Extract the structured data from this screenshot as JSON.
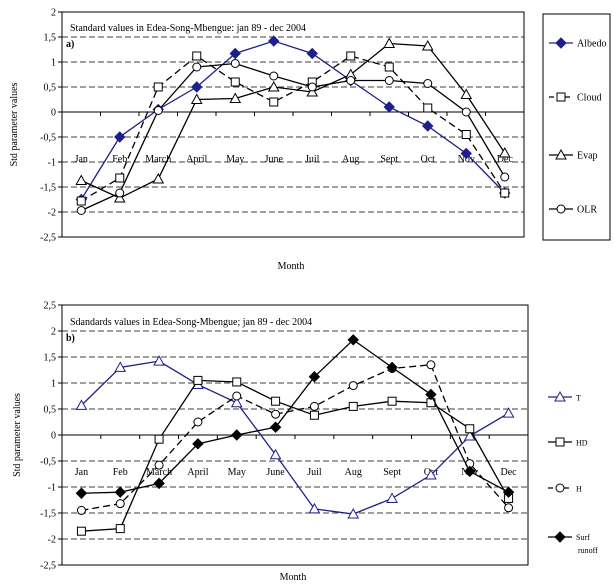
{
  "chart_data": [
    {
      "type": "line",
      "title": "Standard values in Edea-Song-Mbengue: jan 89 - dec 2004",
      "panel_label": "a)",
      "xlabel": "Month",
      "ylabel": "Std parameter values",
      "ylim": [
        -2.5,
        2
      ],
      "ytick_step": 0.5,
      "ytick_labels": [
        "-2,5",
        "-2",
        "-1,5",
        "-1",
        "-0,5",
        "0",
        "0,5",
        "1",
        "1,5",
        "2"
      ],
      "grid": "horizontal dashed",
      "legend_placement": "right",
      "categories": [
        "Jan",
        "Feb",
        "March",
        "April",
        "May",
        "June",
        "Juil",
        "Aug",
        "Sept",
        "Oct",
        "Nov",
        "Dec"
      ],
      "series": [
        {
          "name": "Albedo",
          "marker": "diamond",
          "dash": "solid",
          "color": "#1f1f8c",
          "values": [
            -1.75,
            -0.5,
            0.05,
            0.5,
            1.17,
            1.42,
            1.17,
            0.63,
            0.1,
            -0.28,
            -0.83,
            -1.62
          ]
        },
        {
          "name": "Cloud",
          "marker": "square",
          "dash": "dashed",
          "color": "#000000",
          "values": [
            -1.78,
            -1.32,
            0.5,
            1.12,
            0.6,
            0.2,
            0.6,
            1.12,
            0.9,
            0.08,
            -0.45,
            -1.62
          ]
        },
        {
          "name": "Evap",
          "marker": "triangle",
          "dash": "solid",
          "color": "#000000",
          "values": [
            -1.37,
            -1.72,
            -1.34,
            0.25,
            0.27,
            0.5,
            0.4,
            0.75,
            1.37,
            1.32,
            0.35,
            -0.82
          ]
        },
        {
          "name": "OLR",
          "marker": "circle",
          "dash": "solid",
          "color": "#000000",
          "values": [
            -1.97,
            -1.62,
            0.03,
            0.9,
            0.97,
            0.72,
            0.5,
            0.63,
            0.63,
            0.57,
            0.0,
            -1.3
          ]
        }
      ]
    },
    {
      "type": "line",
      "title": "Sdandards values in Edea-Song-Mbengue; jan 89 - dec 2004",
      "panel_label": "b)",
      "xlabel": "Month",
      "ylabel": "Std parameter values",
      "ylim": [
        -2.5,
        2.5
      ],
      "ytick_step": 0.5,
      "ytick_labels": [
        "-2,5",
        "-2",
        "-1,5",
        "-1",
        "-0,5",
        "0",
        "0,5",
        "1",
        "1,5",
        "2",
        "2,5"
      ],
      "grid": "horizontal dashed",
      "legend_placement": "right",
      "categories": [
        "Jan",
        "Feb",
        "March",
        "April",
        "May",
        "June",
        "Juil",
        "Aug",
        "Sept",
        "Oct",
        "Nov",
        "Dec"
      ],
      "series": [
        {
          "name": "T",
          "marker": "triangle",
          "dash": "solid",
          "color": "#1f1f8c",
          "values": [
            0.57,
            1.3,
            1.42,
            0.97,
            0.62,
            -0.38,
            -1.42,
            -1.52,
            -1.22,
            -0.77,
            -0.02,
            0.42
          ]
        },
        {
          "name": "HD",
          "marker": "square",
          "dash": "solid",
          "color": "#000000",
          "values": [
            -1.85,
            -1.8,
            -0.08,
            1.05,
            1.02,
            0.65,
            0.38,
            0.55,
            0.65,
            0.62,
            0.12,
            -1.22
          ]
        },
        {
          "name": "H",
          "marker": "circle",
          "dash": "dashed",
          "color": "#000000",
          "values": [
            -1.45,
            -1.32,
            -0.58,
            0.25,
            0.75,
            0.4,
            0.55,
            0.95,
            1.28,
            1.35,
            -0.55,
            -1.4
          ]
        },
        {
          "name": "Surf runoff",
          "marker": "diamond-filled",
          "dash": "solid",
          "color": "#000000",
          "values": [
            -1.12,
            -1.1,
            -0.93,
            -0.17,
            0.0,
            0.15,
            1.12,
            1.83,
            1.3,
            0.78,
            -0.7,
            -1.1
          ]
        }
      ]
    }
  ]
}
